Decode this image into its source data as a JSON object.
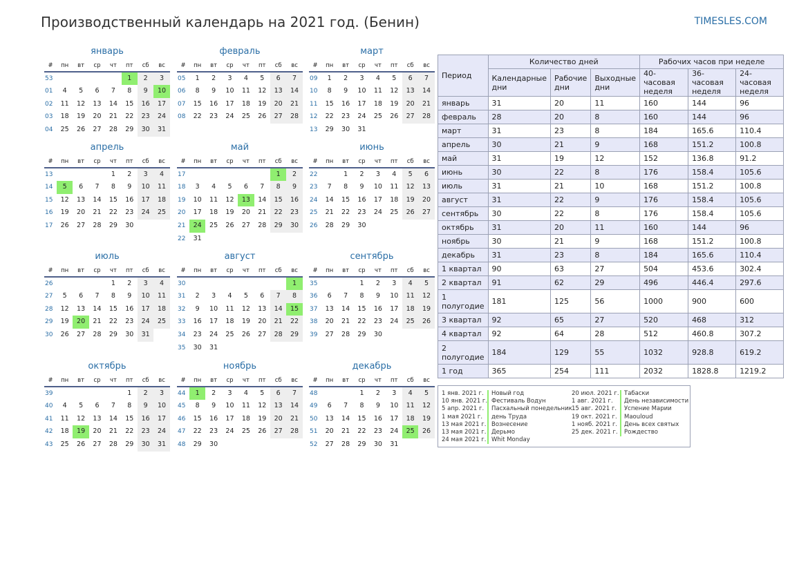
{
  "title": "Производственный календарь на 2021 год. (Бенин)",
  "site": "TIMESLES.COM",
  "dayHeaders": [
    "#",
    "пн",
    "вт",
    "ср",
    "чт",
    "пт",
    "сб",
    "вс"
  ],
  "months": [
    {
      "name": "январь",
      "startDow": 4,
      "days": 31,
      "startWeek": 53,
      "holidays": [
        1,
        10
      ]
    },
    {
      "name": "февраль",
      "startDow": 0,
      "days": 28,
      "startWeek": 5,
      "holidays": []
    },
    {
      "name": "март",
      "startDow": 0,
      "days": 31,
      "startWeek": 9,
      "holidays": []
    },
    {
      "name": "апрель",
      "startDow": 3,
      "days": 30,
      "startWeek": 13,
      "holidays": [
        5
      ]
    },
    {
      "name": "май",
      "startDow": 5,
      "days": 31,
      "startWeek": 17,
      "holidays": [
        1,
        13,
        24
      ]
    },
    {
      "name": "июнь",
      "startDow": 1,
      "days": 30,
      "startWeek": 22,
      "holidays": []
    },
    {
      "name": "июль",
      "startDow": 3,
      "days": 31,
      "startWeek": 26,
      "holidays": [
        20
      ]
    },
    {
      "name": "август",
      "startDow": 6,
      "days": 31,
      "startWeek": 30,
      "holidays": [
        1,
        15
      ]
    },
    {
      "name": "сентябрь",
      "startDow": 2,
      "days": 30,
      "startWeek": 35,
      "holidays": []
    },
    {
      "name": "октябрь",
      "startDow": 4,
      "days": 31,
      "startWeek": 39,
      "holidays": [
        19
      ]
    },
    {
      "name": "ноябрь",
      "startDow": 0,
      "days": 30,
      "startWeek": 44,
      "holidays": [
        1
      ]
    },
    {
      "name": "декабрь",
      "startDow": 2,
      "days": 31,
      "startWeek": 48,
      "holidays": [
        25
      ]
    }
  ],
  "stats": {
    "period": "Период",
    "daysGroup": "Количество дней",
    "hoursGroup": "Рабочих часов при неделе",
    "cols": [
      "Календарные дни",
      "Рабочие дни",
      "Выходные дни",
      "40-часовая неделя",
      "36-часовая неделя",
      "24-часовая неделя"
    ],
    "rows": [
      [
        "январь",
        "31",
        "20",
        "11",
        "160",
        "144",
        "96"
      ],
      [
        "февраль",
        "28",
        "20",
        "8",
        "160",
        "144",
        "96"
      ],
      [
        "март",
        "31",
        "23",
        "8",
        "184",
        "165.6",
        "110.4"
      ],
      [
        "апрель",
        "30",
        "21",
        "9",
        "168",
        "151.2",
        "100.8"
      ],
      [
        "май",
        "31",
        "19",
        "12",
        "152",
        "136.8",
        "91.2"
      ],
      [
        "июнь",
        "30",
        "22",
        "8",
        "176",
        "158.4",
        "105.6"
      ],
      [
        "июль",
        "31",
        "21",
        "10",
        "168",
        "151.2",
        "100.8"
      ],
      [
        "август",
        "31",
        "22",
        "9",
        "176",
        "158.4",
        "105.6"
      ],
      [
        "сентябрь",
        "30",
        "22",
        "8",
        "176",
        "158.4",
        "105.6"
      ],
      [
        "октябрь",
        "31",
        "20",
        "11",
        "160",
        "144",
        "96"
      ],
      [
        "ноябрь",
        "30",
        "21",
        "9",
        "168",
        "151.2",
        "100.8"
      ],
      [
        "декабрь",
        "31",
        "23",
        "8",
        "184",
        "165.6",
        "110.4"
      ],
      [
        "1 квартал",
        "90",
        "63",
        "27",
        "504",
        "453.6",
        "302.4"
      ],
      [
        "2 квартал",
        "91",
        "62",
        "29",
        "496",
        "446.4",
        "297.6"
      ],
      [
        "1 полугодие",
        "181",
        "125",
        "56",
        "1000",
        "900",
        "600"
      ],
      [
        "3 квартал",
        "92",
        "65",
        "27",
        "520",
        "468",
        "312"
      ],
      [
        "4 квартал",
        "92",
        "64",
        "28",
        "512",
        "460.8",
        "307.2"
      ],
      [
        "2 полугодие",
        "184",
        "129",
        "55",
        "1032",
        "928.8",
        "619.2"
      ],
      [
        "1 год",
        "365",
        "254",
        "111",
        "2032",
        "1828.8",
        "1219.2"
      ]
    ]
  },
  "holidays": [
    {
      "date": "1 янв. 2021 г.",
      "name": "Новый год"
    },
    {
      "date": "10 янв. 2021 г.",
      "name": "Фестиваль Водун"
    },
    {
      "date": "5 апр. 2021 г.",
      "name": "Пасхальный понедельник"
    },
    {
      "date": "1 мая 2021 г.",
      "name": "день Труда"
    },
    {
      "date": "13 мая 2021 г.",
      "name": "Вознесение"
    },
    {
      "date": "13 мая 2021 г.",
      "name": "Дерьмо"
    },
    {
      "date": "24 мая 2021 г.",
      "name": "Whit Monday"
    },
    {
      "date": "20 июл. 2021 г.",
      "name": "Табаски"
    },
    {
      "date": "1 авг. 2021 г.",
      "name": "День независимости"
    },
    {
      "date": "15 авг. 2021 г.",
      "name": "Успение Марии"
    },
    {
      "date": "19 окт. 2021 г.",
      "name": "Maouloud"
    },
    {
      "date": "1 нояб. 2021 г.",
      "name": "День всех святых"
    },
    {
      "date": "25 дек. 2021 г.",
      "name": "Рождество"
    }
  ]
}
